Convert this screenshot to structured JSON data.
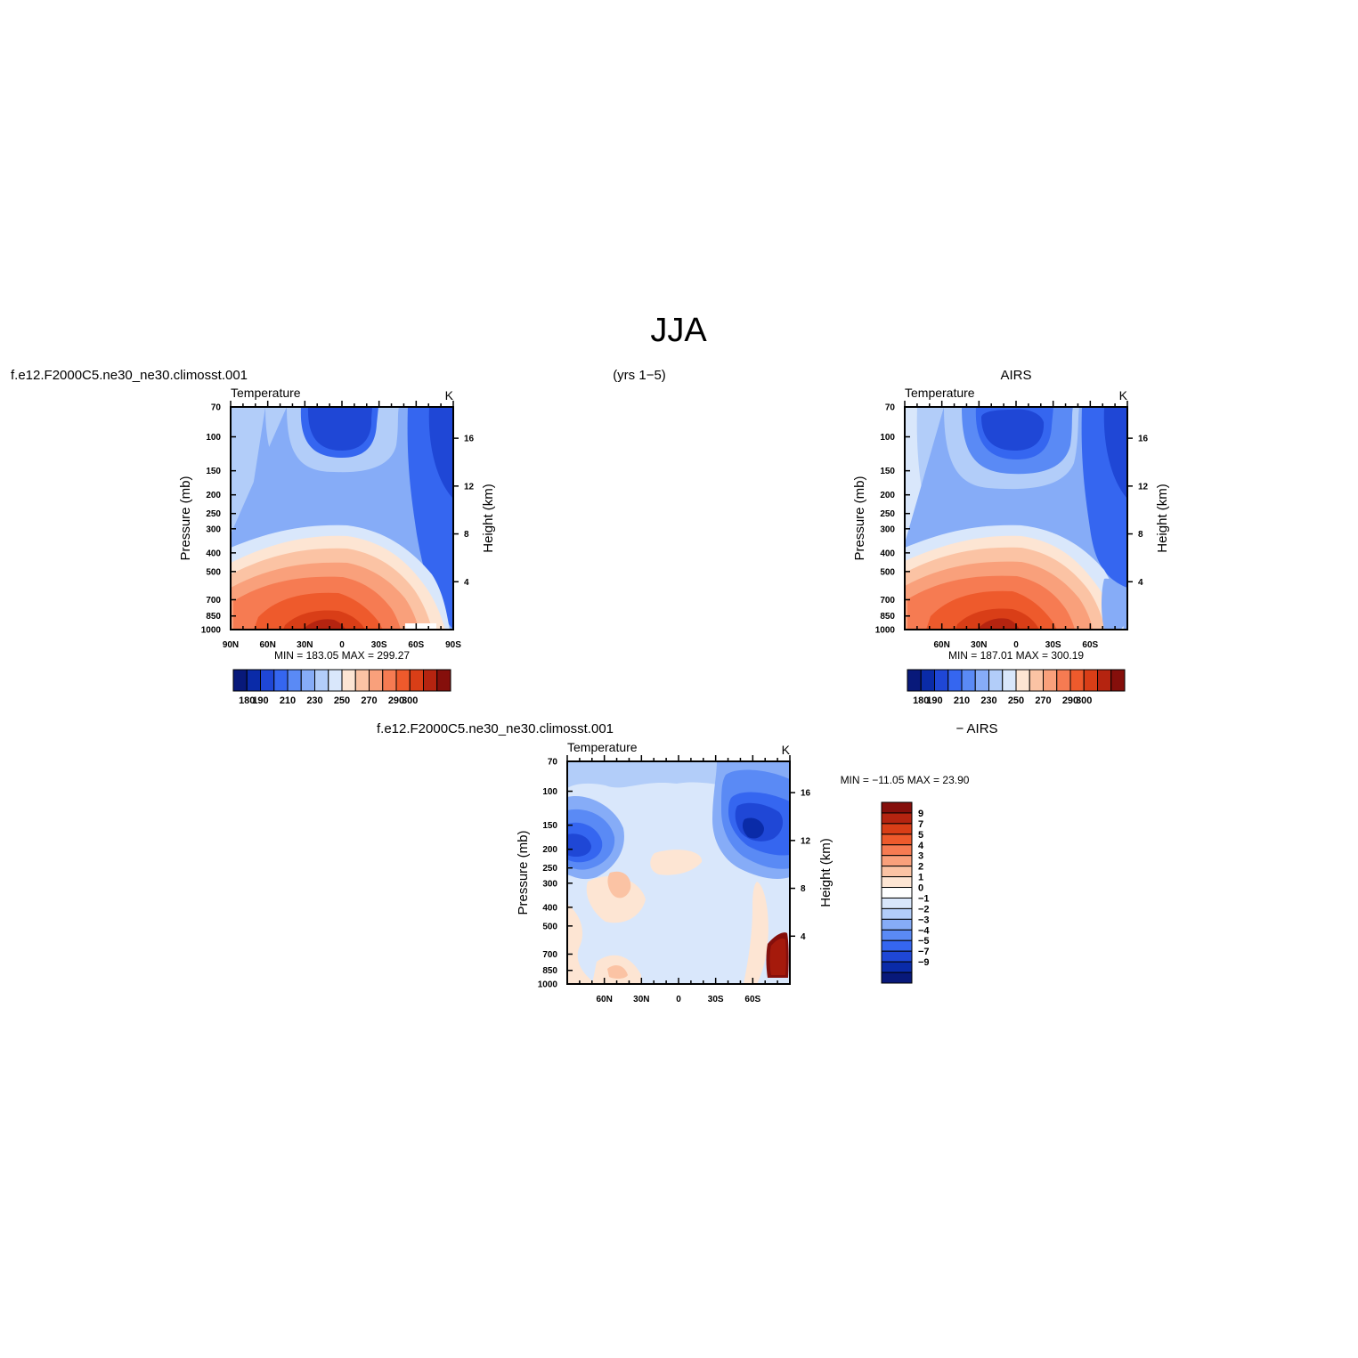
{
  "figure": {
    "title": "JJA",
    "header_left": "f.e12.F2000C5.ne30_ne30.climosst.001",
    "header_center": "(yrs  1−5)",
    "header_right": "AIRS",
    "diff_header_left": "f.e12.F2000C5.ne30_ne30.climosst.001",
    "diff_header_right": "−  AIRS"
  },
  "chart_data": [
    {
      "type": "heatmap",
      "id": "model",
      "title_left": "Temperature",
      "title_right": "K",
      "ylabel": "Pressure (mb)",
      "ylabel_right": "Height (km)",
      "x_ticks": [
        "90N",
        "60N",
        "30N",
        "0",
        "30S",
        "60S",
        "90S"
      ],
      "x_tick_values": [
        90,
        60,
        30,
        0,
        -30,
        -60,
        -90
      ],
      "y_ticks": [
        "70",
        "100",
        "150",
        "200",
        "250",
        "300",
        "400",
        "500",
        "700",
        "850",
        "1000"
      ],
      "y_tick_values": [
        70,
        100,
        150,
        200,
        250,
        300,
        400,
        500,
        700,
        850,
        1000
      ],
      "height_ticks": [
        "16",
        "12",
        "8",
        "4"
      ],
      "height_tick_values": [
        16,
        12,
        8,
        4
      ],
      "ylim": [
        70,
        1000
      ],
      "xlim": [
        90,
        -90
      ],
      "y_scale": "log",
      "min_max_text": "MIN =  183.05    MAX =  299.27",
      "min": 183.05,
      "max": 299.27,
      "colorbar": {
        "orientation": "horizontal",
        "levels": [
          180,
          190,
          200,
          210,
          220,
          230,
          240,
          250,
          260,
          270,
          280,
          290,
          300
        ],
        "labels": [
          "180",
          "190",
          "210",
          "230",
          "250",
          "270",
          "290",
          "300"
        ],
        "colors": [
          "#08197a",
          "#0a2ba8",
          "#1f47d6",
          "#3566f0",
          "#5a8af5",
          "#86acf7",
          "#b2cdf9",
          "#d9e7fb",
          "#fde5d3",
          "#fbc3a4",
          "#f9a07b",
          "#f67b52",
          "#ee5a2c",
          "#d93e17",
          "#b52410",
          "#850f0b"
        ]
      }
    },
    {
      "type": "heatmap",
      "id": "obs",
      "title_left": "Temperature",
      "title_right": "K",
      "ylabel": "Pressure (mb)",
      "ylabel_right": "Height (km)",
      "x_ticks": [
        "60N",
        "30N",
        "0",
        "30S",
        "60S"
      ],
      "x_tick_values": [
        60,
        30,
        0,
        -30,
        -60
      ],
      "y_ticks": [
        "70",
        "100",
        "150",
        "200",
        "250",
        "300",
        "400",
        "500",
        "700",
        "850",
        "1000"
      ],
      "y_tick_values": [
        70,
        100,
        150,
        200,
        250,
        300,
        400,
        500,
        700,
        850,
        1000
      ],
      "height_ticks": [
        "16",
        "12",
        "8",
        "4"
      ],
      "height_tick_values": [
        16,
        12,
        8,
        4
      ],
      "ylim": [
        70,
        1000
      ],
      "xlim": [
        90,
        -90
      ],
      "y_scale": "log",
      "min_max_text": "MIN =  187.01    MAX =  300.19",
      "min": 187.01,
      "max": 300.19,
      "colorbar": {
        "orientation": "horizontal",
        "levels": [
          180,
          190,
          200,
          210,
          220,
          230,
          240,
          250,
          260,
          270,
          280,
          290,
          300
        ],
        "labels": [
          "180",
          "190",
          "210",
          "230",
          "250",
          "270",
          "290",
          "300"
        ],
        "colors": [
          "#08197a",
          "#0a2ba8",
          "#1f47d6",
          "#3566f0",
          "#5a8af5",
          "#86acf7",
          "#b2cdf9",
          "#d9e7fb",
          "#fde5d3",
          "#fbc3a4",
          "#f9a07b",
          "#f67b52",
          "#ee5a2c",
          "#d93e17",
          "#b52410",
          "#850f0b"
        ]
      }
    },
    {
      "type": "heatmap",
      "id": "diff",
      "title_left": "Temperature",
      "title_right": "K",
      "ylabel": "Pressure (mb)",
      "ylabel_right": "Height (km)",
      "x_ticks": [
        "60N",
        "30N",
        "0",
        "30S",
        "60S"
      ],
      "x_tick_values": [
        60,
        30,
        0,
        -30,
        -60
      ],
      "y_ticks": [
        "70",
        "100",
        "150",
        "200",
        "250",
        "300",
        "400",
        "500",
        "700",
        "850",
        "1000"
      ],
      "y_tick_values": [
        70,
        100,
        150,
        200,
        250,
        300,
        400,
        500,
        700,
        850,
        1000
      ],
      "height_ticks": [
        "16",
        "12",
        "8",
        "4"
      ],
      "height_tick_values": [
        16,
        12,
        8,
        4
      ],
      "ylim": [
        70,
        1000
      ],
      "xlim": [
        90,
        -90
      ],
      "y_scale": "log",
      "min_max_text": "MIN = −11.05    MAX =    23.90",
      "min": -11.05,
      "max": 23.9,
      "colorbar": {
        "orientation": "vertical",
        "labels": [
          "9",
          "7",
          "5",
          "4",
          "3",
          "2",
          "1",
          "0",
          "−1",
          "−2",
          "−3",
          "−4",
          "−5",
          "−7",
          "−9"
        ],
        "colors": [
          "#850f0b",
          "#b52410",
          "#d93e17",
          "#ee5a2c",
          "#f67b52",
          "#f9a07b",
          "#fbc3a4",
          "#fde5d3",
          "#ffffff",
          "#d9e7fb",
          "#b2cdf9",
          "#86acf7",
          "#5a8af5",
          "#3566f0",
          "#1f47d6",
          "#0a2ba8",
          "#08197a"
        ]
      }
    }
  ]
}
